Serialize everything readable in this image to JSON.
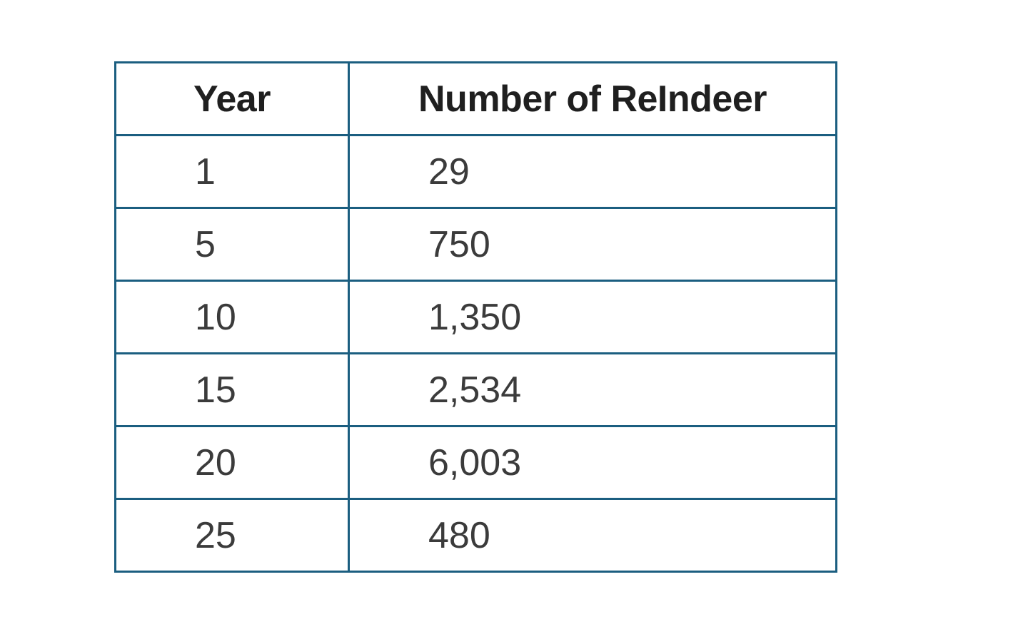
{
  "page": {
    "background_color": "#ffffff"
  },
  "table": {
    "border_color": "#1b5e80",
    "header_text_color": "#1f1f1f",
    "body_text_color": "#3b3b3b",
    "header": [
      "Year",
      "Number of ReIndeer"
    ],
    "rows": [
      [
        "1",
        "29"
      ],
      [
        "5",
        "750"
      ],
      [
        "10",
        "1,350"
      ],
      [
        "15",
        "2,534"
      ],
      [
        "20",
        "6,003"
      ],
      [
        "25",
        "480"
      ]
    ]
  },
  "chart_data": {
    "type": "table",
    "title": "",
    "columns": [
      "Year",
      "Number of ReIndeer"
    ],
    "categories": [
      1,
      5,
      10,
      15,
      20,
      25
    ],
    "values": [
      29,
      750,
      1350,
      2534,
      6003,
      480
    ]
  }
}
